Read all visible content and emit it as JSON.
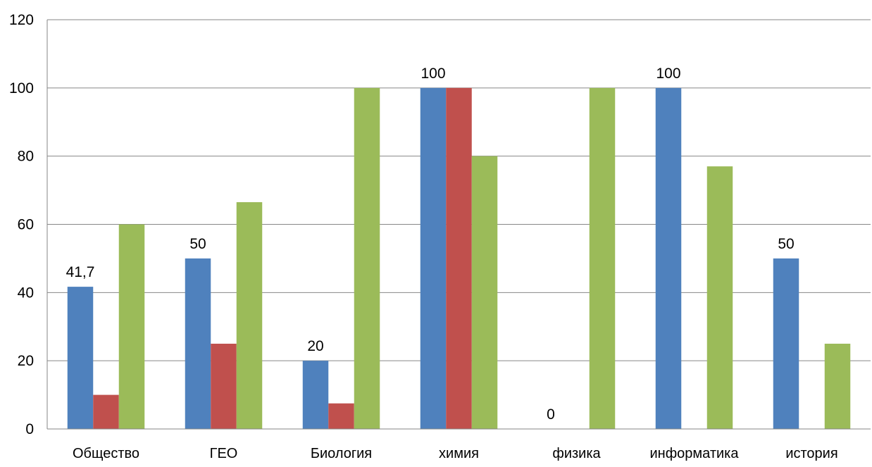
{
  "chart_data": {
    "type": "bar",
    "categories": [
      "Общество",
      "ГЕО",
      "Биология",
      "химия",
      "физика",
      "информатика",
      "история"
    ],
    "series": [
      {
        "values": [
          41.7,
          50,
          20,
          100,
          0,
          100,
          50
        ],
        "color": "#4F81BD"
      },
      {
        "values": [
          10,
          25,
          7.5,
          100,
          0,
          0,
          0
        ],
        "color": "#C0504D"
      },
      {
        "values": [
          60,
          66.5,
          100,
          80,
          100,
          77,
          25
        ],
        "color": "#9BBB59"
      }
    ],
    "data_labels": [
      "41,7",
      "50",
      "20",
      "100",
      "0",
      "100",
      "50"
    ],
    "data_label_series": 0,
    "yticks": [
      "0",
      "20",
      "40",
      "60",
      "80",
      "100",
      "120"
    ],
    "ylim": [
      0,
      120
    ],
    "grid": true,
    "legend": "none",
    "gridline_color": "#868686"
  }
}
